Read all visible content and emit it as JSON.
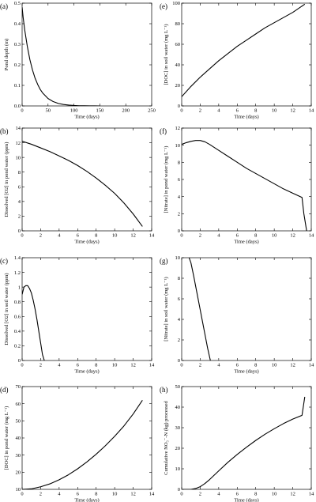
{
  "chart_data": [
    {
      "type": "line",
      "panel_label": "(a)",
      "xlabel": "Time (days)",
      "ylabel": "Pond depth (m)",
      "xlim": [
        0,
        250
      ],
      "ylim": [
        0,
        0.5
      ],
      "xticks": [
        "0",
        "50",
        "100",
        "150",
        "200",
        "250"
      ],
      "yticks": [
        "0.0",
        "0.1",
        "0.2",
        "0.3",
        "0.4",
        "0.5"
      ],
      "x": [
        0,
        2,
        5,
        10,
        15,
        20,
        25,
        30,
        35,
        40,
        50,
        60,
        70,
        80,
        90,
        100,
        110,
        120,
        130,
        140,
        150
      ],
      "y": [
        0.48,
        0.43,
        0.37,
        0.29,
        0.225,
        0.175,
        0.135,
        0.105,
        0.08,
        0.062,
        0.036,
        0.021,
        0.012,
        0.007,
        0.004,
        0.002,
        0.001,
        0.0006,
        0.0003,
        0.0001,
        0.0
      ]
    },
    {
      "type": "line",
      "panel_label": "(b)",
      "xlabel": "Time (days)",
      "ylabel": "Dissolved [O2] in pond water (ppm)",
      "xlim": [
        0,
        14
      ],
      "ylim": [
        0,
        14
      ],
      "xticks": [
        "0",
        "2",
        "4",
        "6",
        "8",
        "10",
        "12",
        "14"
      ],
      "yticks": [
        "0",
        "2",
        "4",
        "6",
        "8",
        "10",
        "12",
        "14"
      ],
      "x": [
        0,
        1,
        2,
        3,
        4,
        5,
        6,
        7,
        8,
        9,
        10,
        11,
        12,
        13
      ],
      "y": [
        12.2,
        11.8,
        11.3,
        10.8,
        10.2,
        9.6,
        8.9,
        8.1,
        7.2,
        6.2,
        5.1,
        3.8,
        2.3,
        0.6
      ]
    },
    {
      "type": "line",
      "panel_label": "(c)",
      "xlabel": "Time (days)",
      "ylabel": "Dissolved [O2] in soil water (ppm)",
      "xlim": [
        0,
        14
      ],
      "ylim": [
        0,
        1.4
      ],
      "xticks": [
        "0",
        "2",
        "4",
        "6",
        "8",
        "10",
        "12",
        "14"
      ],
      "yticks": [
        "0",
        "0.2",
        "0.4",
        "0.6",
        "0.8",
        "1",
        "1.2",
        "1.4"
      ],
      "x": [
        0,
        0.2,
        0.4,
        0.6,
        0.8,
        1.0,
        1.2,
        1.4,
        1.6,
        1.8,
        2.0,
        2.2,
        2.4
      ],
      "y": [
        0.9,
        1.0,
        1.02,
        1.02,
        0.98,
        0.92,
        0.82,
        0.7,
        0.56,
        0.4,
        0.24,
        0.08,
        0.0
      ]
    },
    {
      "type": "line",
      "panel_label": "(d)",
      "xlabel": "Time (days)",
      "ylabel": "[DOC] in pond water (mg L⁻¹)",
      "xlim": [
        0,
        14
      ],
      "ylim": [
        10,
        70
      ],
      "xticks": [
        "0",
        "2",
        "4",
        "6",
        "8",
        "10",
        "12",
        "14"
      ],
      "yticks": [
        "10",
        "20",
        "30",
        "40",
        "50",
        "60",
        "70"
      ],
      "x": [
        0,
        1,
        2,
        3,
        4,
        5,
        6,
        7,
        8,
        9,
        10,
        11,
        12,
        13
      ],
      "y": [
        10,
        10.3,
        11.5,
        13.2,
        15.6,
        18.5,
        22,
        26,
        30.5,
        35.5,
        41,
        47,
        54,
        62
      ]
    },
    {
      "type": "line",
      "panel_label": "(e)",
      "xlabel": "Time (days)",
      "ylabel": "[DOC] in soil water (mg L⁻¹)",
      "xlim": [
        0,
        14
      ],
      "ylim": [
        0,
        100
      ],
      "xticks": [
        "0",
        "2",
        "4",
        "6",
        "8",
        "10",
        "12",
        "14"
      ],
      "yticks": [
        "0",
        "20",
        "40",
        "60",
        "80",
        "100"
      ],
      "x": [
        0,
        1,
        2,
        3,
        4,
        5,
        6,
        7,
        8,
        9,
        10,
        11,
        12,
        13.3
      ],
      "y": [
        9,
        19,
        28,
        36,
        44,
        51,
        58,
        64,
        70,
        76,
        81,
        86,
        91,
        99
      ]
    },
    {
      "type": "line",
      "panel_label": "(f)",
      "xlabel": "Time (days)",
      "ylabel": "[Nitrate] in pond water (mg L⁻¹)",
      "xlim": [
        0,
        14
      ],
      "ylim": [
        0,
        12
      ],
      "xticks": [
        "0",
        "2",
        "4",
        "6",
        "8",
        "10",
        "12",
        "14"
      ],
      "yticks": [
        "0",
        "2",
        "4",
        "6",
        "8",
        "10",
        "12"
      ],
      "x": [
        0,
        0.5,
        1,
        1.5,
        2,
        2.5,
        3,
        4,
        5,
        6,
        7,
        8,
        9,
        10,
        11,
        12,
        13,
        13.2,
        13.5
      ],
      "y": [
        10.1,
        10.3,
        10.45,
        10.55,
        10.55,
        10.4,
        10.1,
        9.4,
        8.7,
        8.0,
        7.3,
        6.7,
        6.1,
        5.5,
        4.9,
        4.4,
        3.9,
        2.0,
        0.0
      ]
    },
    {
      "type": "line",
      "panel_label": "(g)",
      "xlabel": "Time (days)",
      "ylabel": "[Nitrate] in soil water (mg L⁻¹)",
      "xlim": [
        0,
        14
      ],
      "ylim": [
        0,
        10
      ],
      "xticks": [
        "0",
        "2",
        "4",
        "6",
        "8",
        "10",
        "12",
        "14"
      ],
      "yticks": [
        "0",
        "2",
        "4",
        "6",
        "8",
        "10"
      ],
      "x": [
        0.8,
        1.0,
        1.3,
        1.6,
        1.9,
        2.2,
        2.5,
        2.8,
        3.1
      ],
      "y": [
        10,
        9.5,
        8.2,
        6.8,
        5.4,
        4.0,
        2.6,
        1.2,
        0.0
      ]
    },
    {
      "type": "line",
      "panel_label": "(h)",
      "xlabel": "Time (days)",
      "ylabel": "Cumulative NO₃⁻-N (kg) processed",
      "xlim": [
        0,
        14
      ],
      "ylim": [
        0,
        50
      ],
      "xticks": [
        "0",
        "2",
        "4",
        "6",
        "8",
        "10",
        "12",
        "14"
      ],
      "yticks": [
        "0",
        "10",
        "20",
        "30",
        "40",
        "50"
      ],
      "x": [
        0,
        1,
        1.5,
        2,
        2.5,
        3,
        4,
        5,
        6,
        7,
        8,
        9,
        10,
        11,
        12,
        13,
        13.3
      ],
      "y": [
        0,
        0,
        0.4,
        1.3,
        2.8,
        4.7,
        9,
        13.2,
        17,
        20.5,
        23.8,
        26.8,
        29.5,
        32,
        34.2,
        36,
        45
      ]
    }
  ]
}
